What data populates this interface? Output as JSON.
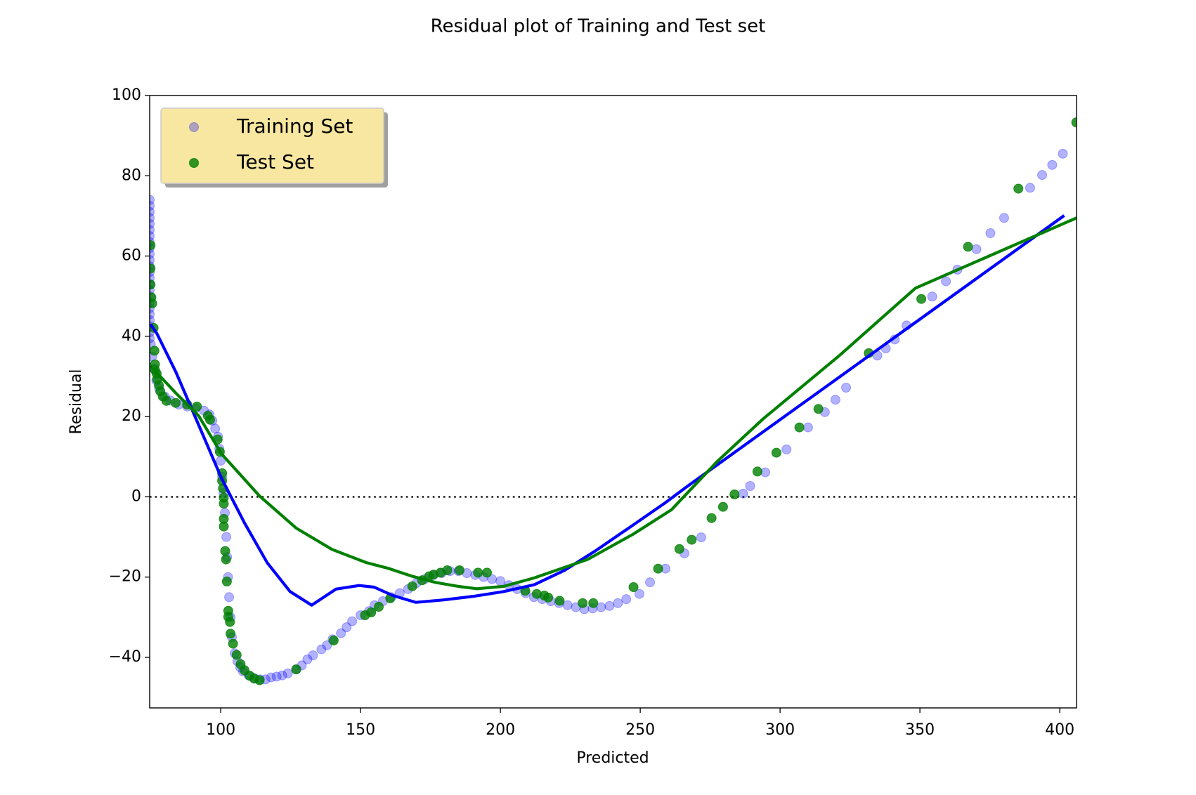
{
  "chart_data": {
    "type": "scatter",
    "title": "Residual plot of Training and Test set",
    "xlabel": "Predicted",
    "ylabel": "Residual",
    "xlim": [
      74.6,
      406
    ],
    "ylim": [
      -52.6,
      100
    ],
    "xticks": [
      100,
      150,
      200,
      250,
      300,
      350,
      400
    ],
    "yticks": [
      {
        "value": -40,
        "label": "−40"
      },
      {
        "value": -20,
        "label": "−20"
      },
      0,
      20,
      40,
      60,
      80,
      100
    ],
    "legend": "upper left",
    "hline": 0,
    "series": [
      {
        "name": "Training Set",
        "color": "blue",
        "opacity": 0.3,
        "x": [
          74.6,
          74.6,
          74.6,
          74.6,
          74.6,
          74.6,
          74.6,
          74.6,
          74.6,
          74.6,
          74.6,
          74.6,
          74.6,
          74.6,
          74.6,
          74.6,
          74.6,
          74.6,
          74.6,
          74.6,
          74.6,
          74.6,
          74.6,
          74.6,
          75,
          75.5,
          76,
          77,
          78,
          80,
          82,
          85,
          88,
          91,
          94,
          96,
          97,
          98,
          99,
          99.5,
          100,
          100.5,
          101,
          101.5,
          102,
          102.3,
          102.6,
          103,
          103.5,
          104,
          105,
          106,
          107,
          108,
          110,
          112,
          114,
          116,
          118,
          120,
          122,
          124,
          127,
          129,
          131,
          133,
          136,
          138,
          140,
          143,
          145,
          147,
          150,
          153,
          155,
          158,
          161,
          164,
          167,
          170,
          173,
          176,
          179,
          182,
          185,
          188,
          191,
          194,
          197,
          200,
          203,
          206,
          209,
          212,
          215,
          218,
          221,
          224,
          227,
          230,
          233,
          236,
          239,
          242,
          245,
          249.7,
          253.5,
          259,
          265.8,
          271.8,
          286.8,
          289.3,
          294.7,
          302.3,
          310,
          316,
          319.8,
          323.6,
          334.8,
          337.8,
          341,
          345.2,
          354.4,
          359.3,
          363.4,
          370.2,
          375.2,
          380.1,
          389.4,
          393.7,
          397.3,
          401.1
        ],
        "values": [
          74,
          72.5,
          71,
          69.5,
          68,
          66.5,
          65,
          63.5,
          62,
          60.5,
          59,
          57.5,
          56,
          54.5,
          53,
          51.5,
          50,
          48.5,
          47,
          45.5,
          44,
          42.5,
          41,
          39.5,
          38,
          35,
          32,
          29,
          27,
          25,
          24,
          23,
          22.5,
          22,
          21.5,
          20.5,
          19,
          17,
          15,
          12,
          9,
          5,
          1,
          -4,
          -10,
          -15,
          -20,
          -25,
          -30,
          -35,
          -39,
          -41,
          -42.5,
          -43.5,
          -44.5,
          -45.2,
          -45.5,
          -45.5,
          -45,
          -44.8,
          -44.5,
          -44,
          -43,
          -42,
          -40.5,
          -39.5,
          -38,
          -37,
          -35.5,
          -34,
          -32.5,
          -31,
          -29.5,
          -28.5,
          -27,
          -26,
          -25,
          -24,
          -23,
          -21.5,
          -20.5,
          -19.5,
          -19,
          -18.5,
          -18.5,
          -19,
          -19.5,
          -20,
          -20.5,
          -21,
          -22,
          -23,
          -24,
          -25,
          -25.5,
          -26,
          -26.5,
          -27,
          -27.5,
          -28,
          -27.8,
          -27.5,
          -27.2,
          -26.5,
          -25.5,
          -24.2,
          -21.3,
          -17.9,
          -14.1,
          -10.1,
          0.8,
          2.7,
          6.1,
          11.8,
          17.3,
          21.1,
          24.2,
          27.2,
          35.2,
          37,
          39.2,
          42.7,
          49.9,
          53.7,
          56.6,
          61.7,
          65.7,
          69.5,
          77,
          80.2,
          82.7,
          85.5
        ]
      },
      {
        "name": "Test Set",
        "color": "green",
        "opacity": 0.8,
        "x": [
          74.9,
          74.9,
          74.9,
          75.2,
          75.5,
          76.0,
          76.3,
          76.5,
          76.5,
          77.1,
          77.3,
          77.9,
          78.4,
          79.3,
          80.6,
          83.9,
          88.0,
          91.5,
          95.4,
          96.2,
          98.9,
          99.7,
          100.5,
          100.5,
          100.8,
          101.1,
          101.1,
          101.1,
          101.1,
          101.6,
          101.9,
          102.2,
          102.7,
          102.7,
          103.3,
          103.5,
          104.4,
          105.7,
          107.1,
          108.5,
          110.4,
          112.0,
          113.9,
          127.0,
          140.4,
          151.6,
          153.8,
          156.5,
          160.6,
          168.5,
          172.0,
          174.5,
          176.1,
          178.6,
          181.0,
          185.4,
          192.0,
          195.2,
          208.9,
          213.0,
          215.7,
          217.1,
          221.2,
          229.4,
          233.2,
          247.6,
          256.4,
          264.0,
          268.4,
          275.5,
          279.6,
          283.7,
          291.9,
          298.7,
          306.9,
          313.7,
          331.7,
          350.5,
          367.2,
          385.2,
          405.9
        ],
        "values": [
          62.7,
          56.9,
          52.9,
          49.7,
          48.2,
          42.1,
          36.4,
          33.0,
          31.6,
          30.7,
          29.3,
          27.8,
          26.3,
          25.0,
          23.9,
          23.4,
          23.0,
          22.5,
          20.2,
          19.2,
          14.3,
          11.2,
          5.9,
          4.0,
          2.1,
          -0.2,
          -1.7,
          -5.5,
          -7.4,
          -13.5,
          -15.6,
          -21.1,
          -28.4,
          -29.9,
          -31.2,
          -34.1,
          -36.6,
          -39.4,
          -41.7,
          -43.2,
          -44.6,
          -45.3,
          -45.7,
          -43.0,
          -35.8,
          -29.5,
          -28.8,
          -27.4,
          -25.3,
          -22.3,
          -20.8,
          -19.8,
          -19.4,
          -18.9,
          -18.3,
          -18.3,
          -18.9,
          -18.9,
          -23.4,
          -24.2,
          -24.6,
          -25.1,
          -25.9,
          -26.5,
          -26.5,
          -22.5,
          -17.9,
          -13.0,
          -10.7,
          -5.3,
          -2.5,
          0.6,
          6.3,
          11.0,
          17.3,
          21.9,
          35.8,
          49.3,
          62.3,
          76.8,
          93.3
        ]
      }
    ],
    "fit_lines": [
      {
        "color": "blue",
        "x": [
          74.9,
          77.1,
          83.9,
          90.7,
          100.3,
          108.5,
          116.6,
          124.8,
          132.5,
          141.2,
          149.4,
          154.8,
          161.6,
          169.8,
          179.4,
          190.3,
          201.2,
          212.1,
          223,
          233.9,
          247.5,
          258.5,
          266.6,
          401.6
        ],
        "values": [
          43,
          40.8,
          31.2,
          20.2,
          4.6,
          -6.5,
          -16.4,
          -23.6,
          -27,
          -23,
          -22.1,
          -22.5,
          -24.6,
          -26.3,
          -25.7,
          -24.8,
          -23.6,
          -21.9,
          -18.3,
          -13.5,
          -7,
          -1.7,
          2.5,
          70.1
        ]
      },
      {
        "color": "green",
        "x": [
          74.9,
          83.9,
          92.1,
          100.3,
          113.9,
          127,
          139.8,
          152.1,
          160.3,
          168.5,
          176.6,
          184.8,
          191.6,
          201.2,
          212.1,
          231.2,
          247.5,
          261.2,
          277.5,
          293.9,
          321.2,
          348.4,
          406
        ],
        "values": [
          32.6,
          25.9,
          20.2,
          10.7,
          0.2,
          -7.8,
          -13.1,
          -16.4,
          -17.9,
          -19.8,
          -21.3,
          -22.3,
          -22.9,
          -22.3,
          -20.2,
          -15.6,
          -9.3,
          -3.2,
          8.8,
          19.4,
          35.2,
          52,
          69.5
        ]
      }
    ]
  }
}
